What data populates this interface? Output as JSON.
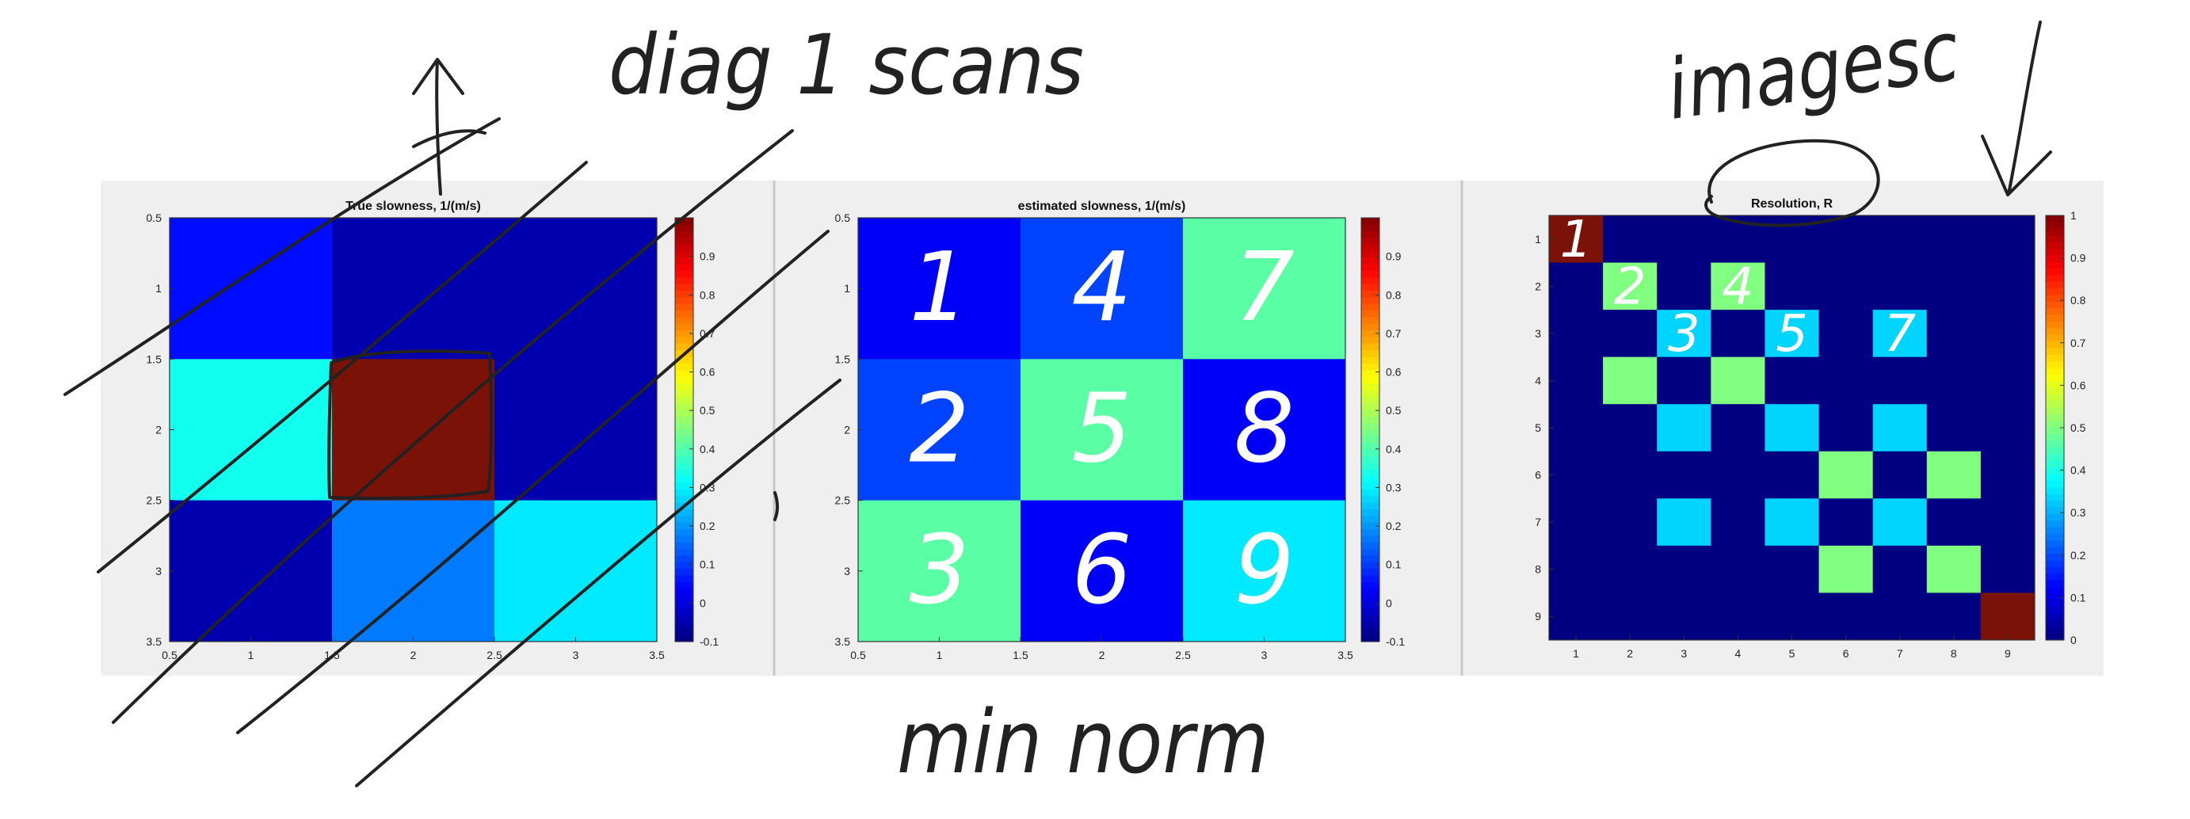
{
  "chart_data": [
    {
      "type": "heatmap",
      "title": "True slowness, 1/(m/s)",
      "x": [
        1,
        2,
        3
      ],
      "y": [
        1,
        2,
        3
      ],
      "xlim": [
        0.5,
        3.5
      ],
      "ylim": [
        0.5,
        3.5
      ],
      "x_ticks": [
        "0.5",
        "1",
        "1.5",
        "2",
        "2.5",
        "3",
        "3.5"
      ],
      "y_ticks": [
        "0.5",
        "1",
        "1.5",
        "2",
        "2.5",
        "3",
        "3.5"
      ],
      "values": [
        [
          0.05,
          -0.05,
          -0.05
        ],
        [
          0.33,
          1.0,
          -0.05
        ],
        [
          -0.05,
          0.17,
          0.29
        ]
      ],
      "clim": [
        -0.1,
        1.0
      ],
      "colorbar_ticks": [
        "-0.1",
        "0",
        "0.1",
        "0.2",
        "0.3",
        "0.4",
        "0.5",
        "0.6",
        "0.7",
        "0.8",
        "0.9"
      ],
      "colormap": "jet"
    },
    {
      "type": "heatmap",
      "title": "estimated slowness, 1/(m/s)",
      "x": [
        1,
        2,
        3
      ],
      "y": [
        1,
        2,
        3
      ],
      "xlim": [
        0.5,
        3.5
      ],
      "ylim": [
        0.5,
        3.5
      ],
      "x_ticks": [
        "0.5",
        "1",
        "1.5",
        "2",
        "2.5",
        "3",
        "3.5"
      ],
      "y_ticks": [
        "0.5",
        "1",
        "1.5",
        "2",
        "2.5",
        "3",
        "3.5"
      ],
      "values": [
        [
          0.03,
          0.11,
          0.41
        ],
        [
          0.11,
          0.41,
          0.03
        ],
        [
          0.41,
          0.03,
          0.29
        ]
      ],
      "clim": [
        -0.1,
        1.0
      ],
      "colorbar_ticks": [
        "-0.1",
        "0",
        "0.1",
        "0.2",
        "0.3",
        "0.4",
        "0.5",
        "0.6",
        "0.7",
        "0.8",
        "0.9"
      ],
      "colormap": "jet"
    },
    {
      "type": "heatmap",
      "title": "Resolution, R",
      "x": [
        1,
        2,
        3,
        4,
        5,
        6,
        7,
        8,
        9
      ],
      "y": [
        1,
        2,
        3,
        4,
        5,
        6,
        7,
        8,
        9
      ],
      "xlim": [
        0.5,
        9.5
      ],
      "ylim": [
        0.5,
        9.5
      ],
      "x_ticks": [
        "1",
        "2",
        "3",
        "4",
        "5",
        "6",
        "7",
        "8",
        "9"
      ],
      "y_ticks": [
        "1",
        "2",
        "3",
        "4",
        "5",
        "6",
        "7",
        "8",
        "9"
      ],
      "values": [
        [
          1,
          0,
          0,
          0,
          0,
          0,
          0,
          0,
          0
        ],
        [
          0,
          0.5,
          0,
          0.5,
          0,
          0,
          0,
          0,
          0
        ],
        [
          0,
          0,
          0.333,
          0,
          0.333,
          0,
          0.333,
          0,
          0
        ],
        [
          0,
          0.5,
          0,
          0.5,
          0,
          0,
          0,
          0,
          0
        ],
        [
          0,
          0,
          0.333,
          0,
          0.333,
          0,
          0.333,
          0,
          0
        ],
        [
          0,
          0,
          0,
          0,
          0,
          0.5,
          0,
          0.5,
          0
        ],
        [
          0,
          0,
          0.333,
          0,
          0.333,
          0,
          0.333,
          0,
          0
        ],
        [
          0,
          0,
          0,
          0,
          0,
          0.5,
          0,
          0.5,
          0
        ],
        [
          0,
          0,
          0,
          0,
          0,
          0,
          0,
          0,
          1
        ]
      ],
      "clim": [
        0,
        1
      ],
      "colorbar_ticks": [
        "0",
        "0.1",
        "0.2",
        "0.3",
        "0.4",
        "0.5",
        "0.6",
        "0.7",
        "0.8",
        "0.9",
        "1"
      ],
      "colormap": "jet"
    }
  ],
  "annotations": {
    "top_label": "diag 1 scans",
    "right_label": "imagesc",
    "bottom_label": "min norm",
    "middle_cell_numbers": [
      "1",
      "2",
      "3",
      "4",
      "5",
      "6",
      "7",
      "8",
      "9"
    ],
    "resolution_numbers": [
      "1",
      "2",
      "3",
      "4",
      "5",
      "7"
    ]
  }
}
